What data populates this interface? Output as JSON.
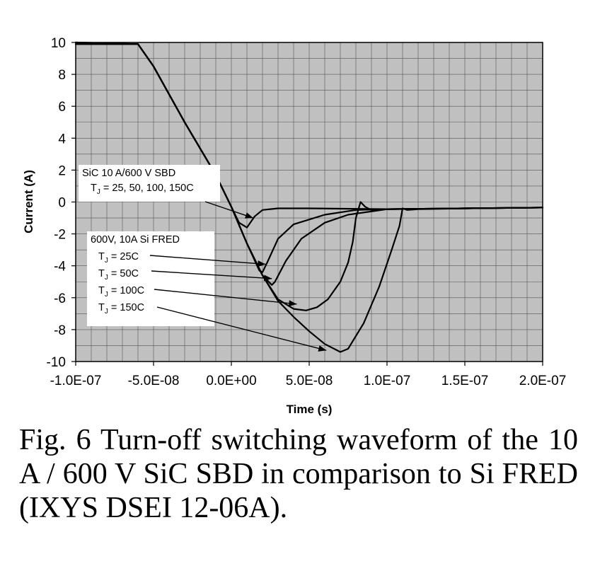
{
  "chart_data": {
    "type": "line",
    "xlabel": "Time (s)",
    "ylabel": "Current (A)",
    "xlim": [
      -1e-07,
      2e-07
    ],
    "ylim": [
      -10,
      10
    ],
    "x_tick_labels": [
      "-1.0E-07",
      "-5.0E-08",
      "0.0E+00",
      "5.0E-08",
      "1.0E-07",
      "1.5E-07",
      "2.0E-07"
    ],
    "y_tick_labels": [
      "10",
      "8",
      "6",
      "4",
      "2",
      "0",
      "-2",
      "-4",
      "-6",
      "-8",
      "-10"
    ],
    "grid": true,
    "plot_background": "#c0c0c0",
    "line_color": "#000000",
    "series": [
      {
        "group": "SiC",
        "x": [
          -1e-07,
          -6e-08,
          -5e-08,
          -3e-08,
          -1e-08,
          0,
          5e-09,
          1e-08,
          1.5e-08,
          2e-08,
          3e-08,
          5e-08,
          1e-07,
          1.5e-07,
          2e-07
        ],
        "y": [
          9.95,
          9.9,
          8.5,
          5.0,
          1.7,
          -0.3,
          -1.3,
          -1.6,
          -0.9,
          -0.5,
          -0.4,
          -0.4,
          -0.45,
          -0.4,
          -0.35
        ]
      },
      {
        "group": "Si",
        "x": [
          -1e-07,
          -6e-08,
          -5e-08,
          -3e-08,
          -1e-08,
          0,
          1e-08,
          1.8e-08,
          2e-08,
          2.3e-08,
          3e-08,
          4e-08,
          6e-08,
          8e-08,
          1e-07,
          1.5e-07,
          2e-07
        ],
        "y": [
          9.95,
          9.9,
          8.5,
          5.0,
          1.7,
          -0.3,
          -2.6,
          -4.3,
          -4.4,
          -3.8,
          -2.3,
          -1.4,
          -0.8,
          -0.5,
          -0.45,
          -0.4,
          -0.35
        ]
      },
      {
        "group": "Si",
        "x": [
          -1e-07,
          -6e-08,
          -5e-08,
          -3e-08,
          -1e-08,
          0,
          1e-08,
          2e-08,
          2.6e-08,
          2.8e-08,
          3.5e-08,
          4.5e-08,
          6e-08,
          7.5e-08,
          1e-07,
          1.5e-07,
          2e-07
        ],
        "y": [
          9.95,
          9.9,
          8.5,
          5.0,
          1.7,
          -0.3,
          -2.6,
          -4.6,
          -5.2,
          -5.0,
          -3.7,
          -2.3,
          -1.3,
          -0.8,
          -0.45,
          -0.4,
          -0.35
        ]
      },
      {
        "group": "Si",
        "x": [
          -1e-07,
          -6e-08,
          -5e-08,
          -3e-08,
          -1e-08,
          0,
          1e-08,
          2e-08,
          3e-08,
          4e-08,
          4.8e-08,
          5.5e-08,
          6.2e-08,
          7e-08,
          7.5e-08,
          7.8e-08,
          8e-08,
          8.3e-08,
          8.6e-08,
          9e-08,
          1e-07,
          1.5e-07,
          2e-07
        ],
        "y": [
          9.95,
          9.9,
          8.5,
          5.0,
          1.7,
          -0.3,
          -2.6,
          -4.6,
          -6.1,
          -6.7,
          -6.8,
          -6.6,
          -6.1,
          -5.0,
          -3.8,
          -2.5,
          -1.0,
          0.0,
          -0.3,
          -0.5,
          -0.45,
          -0.4,
          -0.35
        ]
      },
      {
        "group": "Si",
        "x": [
          -1e-07,
          -6e-08,
          -5e-08,
          -3e-08,
          -1e-08,
          0,
          1e-08,
          2e-08,
          3e-08,
          4e-08,
          5e-08,
          6e-08,
          7e-08,
          7.5e-08,
          8.5e-08,
          9.5e-08,
          1.03e-07,
          1.08e-07,
          1.1e-07,
          1.13e-07,
          1.2e-07,
          1.5e-07,
          2e-07
        ],
        "y": [
          9.95,
          9.9,
          8.5,
          5.0,
          1.7,
          -0.3,
          -2.6,
          -4.6,
          -6.2,
          -7.2,
          -8.1,
          -8.9,
          -9.4,
          -9.2,
          -7.6,
          -5.3,
          -3.0,
          -1.5,
          -0.4,
          -0.5,
          -0.45,
          -0.4,
          -0.35
        ]
      }
    ],
    "annotations": [
      {
        "lines": [
          {
            "main": "SiC 10 A/600 V SBD"
          },
          {
            "main": "T",
            "sub": "J",
            "rest": " = 25, 50, 100, 150C"
          }
        ],
        "points_to": [
          [
            1.4e-08,
            -1.0
          ]
        ]
      },
      {
        "lines": [
          {
            "main": "600V, 10A Si FRED"
          },
          {
            "main": "T",
            "sub": "J",
            "rest": " = 25C"
          },
          {
            "main": "T",
            "sub": "J",
            "rest": " = 50C"
          },
          {
            "main": "T",
            "sub": "J",
            "rest": " = 100C"
          },
          {
            "main": "T",
            "sub": "J",
            "rest": " = 150C"
          }
        ],
        "points_to": [
          [
            2.2e-08,
            -3.9
          ],
          [
            2.6e-08,
            -4.8
          ],
          [
            4.2e-08,
            -6.4
          ],
          [
            6.1e-08,
            -9.3
          ]
        ]
      }
    ]
  },
  "caption": "Fig. 6 Turn-off switching waveform of the 10 A / 600 V SiC SBD in comparison to Si FRED (IXYS DSEI 12-06A)."
}
